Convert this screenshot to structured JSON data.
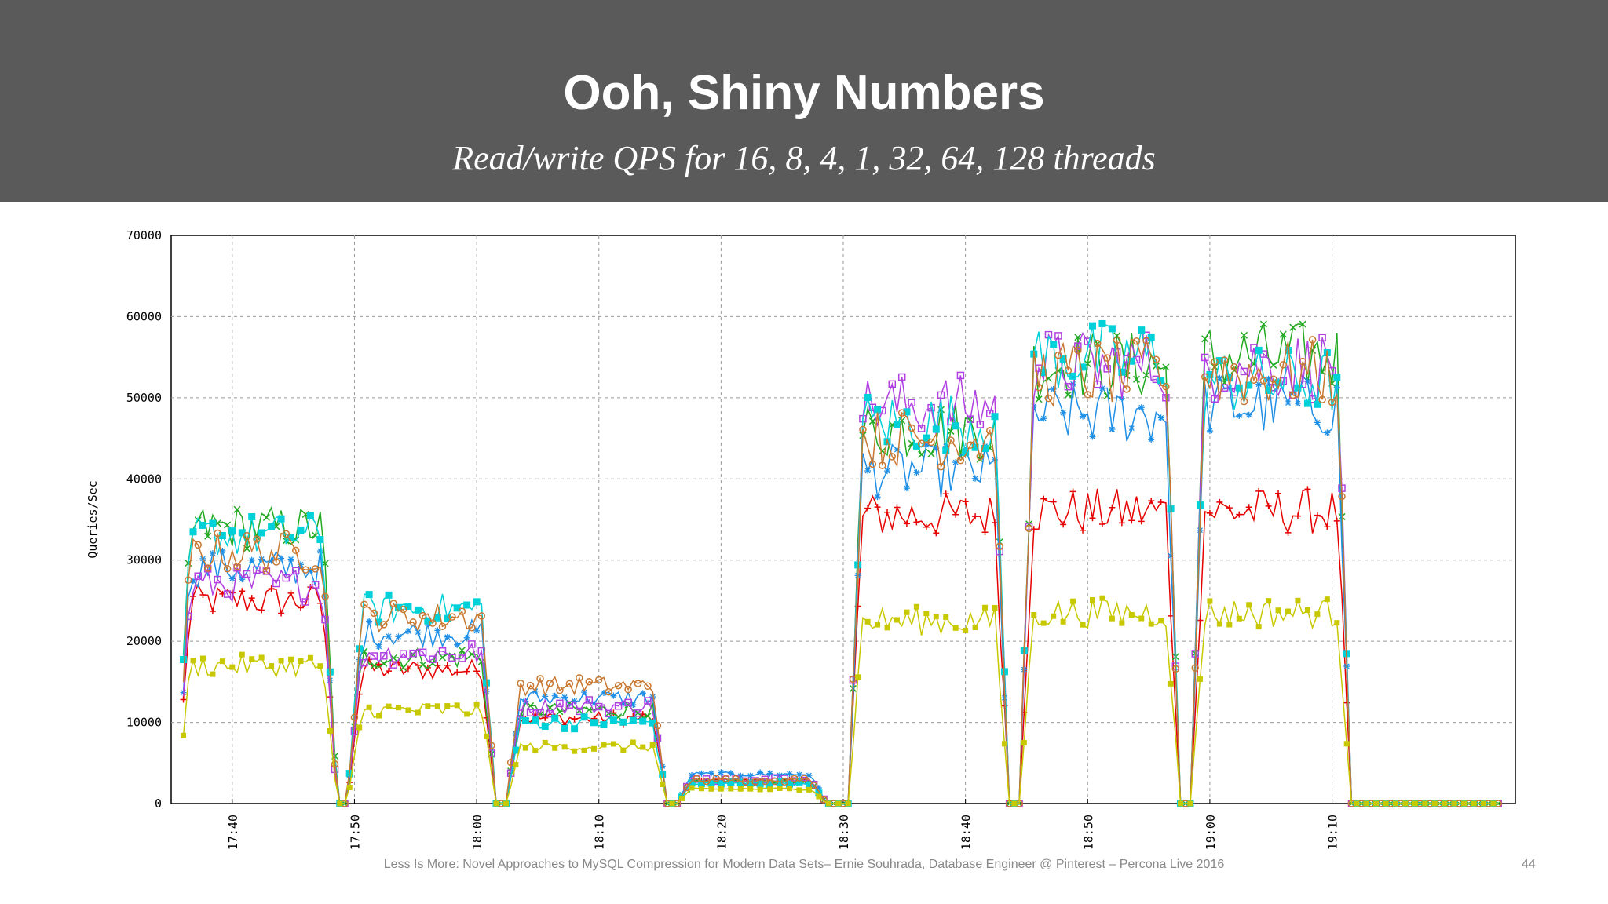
{
  "slide": {
    "title": "Ooh, Shiny Numbers",
    "subtitle": "Read/write QPS for 16, 8, 4, 1, 32, 64, 128 threads",
    "footer": "Less Is More: Novel Approaches to MySQL Compression for Modern Data Sets– Ernie Souhrada, Database Engineer @ Pinterest – Percona Live 2016",
    "page_number": "44"
  },
  "colors": {
    "header_bg": "#5a5a5a",
    "series": [
      "#e60000",
      "#22aa22",
      "#1e8fe6",
      "#b040e0",
      "#00d0d8",
      "#c87830",
      "#c8c800"
    ]
  },
  "chart_data": {
    "type": "line",
    "ylabel": "Queries/Sec",
    "xlabel": "",
    "ylim": [
      0,
      70000
    ],
    "xlim_minutes": [
      1055,
      1165
    ],
    "yticks": [
      "0",
      "10000",
      "20000",
      "30000",
      "40000",
      "50000",
      "60000",
      "70000"
    ],
    "xticks": [
      "17:40",
      "17:50",
      "18:00",
      "18:10",
      "18:20",
      "18:30",
      "18:40",
      "18:50",
      "19:00",
      "19:10"
    ],
    "grid": true,
    "legend": "none",
    "segments": [
      {
        "threads": 16,
        "start": "17:36",
        "end": "17:48",
        "levels": {
          "red": 25000,
          "green": 34000,
          "blue": 29000,
          "purple": 27000,
          "cyan": 33000,
          "brown": 31000,
          "yellow": 17000
        }
      },
      {
        "threads": 8,
        "start": "17:50",
        "end": "18:01",
        "levels": {
          "red": 16500,
          "green": 18000,
          "blue": 21000,
          "purple": 18500,
          "cyan": 24000,
          "brown": 23000,
          "yellow": 11500
        }
      },
      {
        "threads": 4,
        "start": "18:03",
        "end": "18:15",
        "levels": {
          "red": 10500,
          "green": 11500,
          "blue": 13000,
          "purple": 12000,
          "cyan": 10000,
          "brown": 14500,
          "yellow": 7000
        }
      },
      {
        "threads": 1,
        "start": "18:17",
        "end": "18:28",
        "levels": {
          "red": 2800,
          "green": 2600,
          "blue": 3600,
          "purple": 3000,
          "cyan": 2500,
          "brown": 2900,
          "yellow": 1800
        }
      },
      {
        "threads": 32,
        "start": "18:31",
        "end": "18:43",
        "levels": {
          "red": 35500,
          "green": 46000,
          "blue": 41000,
          "purple": 49000,
          "cyan": 47000,
          "brown": 45000,
          "yellow": 22500
        }
      },
      {
        "threads": 64,
        "start": "18:45",
        "end": "18:57",
        "levels": {
          "red": 36000,
          "green": 54000,
          "blue": 48000,
          "purple": 54000,
          "cyan": 55000,
          "brown": 53000,
          "yellow": 23500
        }
      },
      {
        "threads": 128,
        "start": "18:59",
        "end": "19:11",
        "levels": {
          "red": 36000,
          "green": 55000,
          "blue": 49000,
          "purple": 54000,
          "cyan": 52000,
          "brown": 53000,
          "yellow": 23500
        }
      }
    ]
  }
}
